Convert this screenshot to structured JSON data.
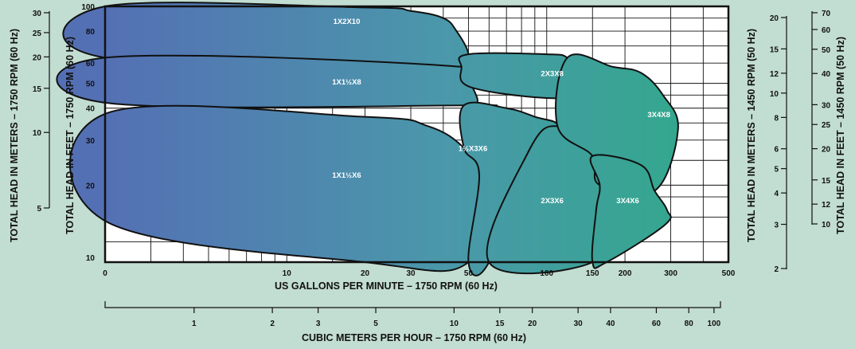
{
  "chart_data": {
    "type": "area",
    "title": "",
    "xlabel": "US GALLONS PER MINUTE – 1750 RPM (60 Hz)",
    "x2label": "CUBIC METERS PER HOUR – 1750 RPM (60 Hz)",
    "ylabel": "TOTAL HEAD IN FEET – 1750 RPM (60 Hz)",
    "ylabel_left_outer": "TOTAL HEAD IN METERS – 1750 RPM (60 Hz)",
    "ylabel_right_inner": "TOTAL HEAD IN METERS – 1450 RPM (50 Hz)",
    "ylabel_right_outer": "TOTAL HEAD IN FEET – 1450 RPM (50 Hz)",
    "x_scale": "log",
    "y_scale": "log",
    "xlim": [
      2,
      500
    ],
    "ylim": [
      10,
      100
    ],
    "grid": true,
    "color_gradient": [
      "#5470b4",
      "#4a98aa",
      "#2faa88"
    ],
    "x_ticks": [
      "0",
      "10",
      "20",
      "30",
      "50",
      "100",
      "150",
      "200",
      "300",
      "500"
    ],
    "y_ticks": [
      "10",
      "20",
      "30",
      "40",
      "50",
      "60",
      "80",
      "100"
    ],
    "x2_ticks": [
      "1",
      "2",
      "3",
      "5",
      "10",
      "15",
      "20",
      "30",
      "40",
      "60",
      "80",
      "100"
    ],
    "y_left_outer_ticks": [
      "5",
      "10",
      "15",
      "20",
      "25",
      "30"
    ],
    "y_right_inner_ticks": [
      "2",
      "3",
      "4",
      "5",
      "6",
      "8",
      "10",
      "12",
      "15",
      "20"
    ],
    "y_right_outer_ticks": [
      "10",
      "12",
      "15",
      "20",
      "25",
      "30",
      "40",
      "50",
      "60",
      "70"
    ],
    "series": [
      {
        "name": "1X2X10",
        "label_at": [
          17,
          88
        ],
        "boundary": [
          [
            2,
            100
          ],
          [
            20,
            99
          ],
          [
            30,
            96
          ],
          [
            40,
            90
          ],
          [
            45,
            80
          ],
          [
            50,
            65
          ],
          [
            47,
            58
          ],
          [
            2,
            63
          ]
        ]
      },
      {
        "name": "1X1½X8",
        "label_at": [
          17,
          51
        ],
        "boundary": [
          [
            2,
            63
          ],
          [
            47,
            58
          ],
          [
            52,
            48
          ],
          [
            54,
            42
          ],
          [
            48,
            41
          ],
          [
            2,
            42
          ]
        ]
      },
      {
        "name": "1X1½X6",
        "label_at": [
          17,
          22
        ],
        "boundary": [
          [
            2,
            38
          ],
          [
            20,
            37
          ],
          [
            35,
            34
          ],
          [
            48,
            28
          ],
          [
            55,
            22
          ],
          [
            50,
            10
          ],
          [
            20,
            10
          ],
          [
            2,
            14.5
          ]
        ]
      },
      {
        "name": "2X3X8",
        "label_at": [
          105,
          55
        ],
        "boundary": [
          [
            47,
            58
          ],
          [
            50,
            65
          ],
          [
            100,
            65
          ],
          [
            120,
            63
          ],
          [
            130,
            55
          ],
          [
            120,
            44
          ],
          [
            52,
            48
          ]
        ]
      },
      {
        "name": "1½X3X6",
        "label_at": [
          52,
          28
        ],
        "boundary": [
          [
            48,
            41
          ],
          [
            70,
            40
          ],
          [
            90,
            37
          ],
          [
            110,
            34
          ],
          [
            85,
            27
          ],
          [
            60,
            10
          ],
          [
            50,
            10
          ],
          [
            55,
            22
          ],
          [
            48,
            28
          ]
        ]
      },
      {
        "name": "2X3X6",
        "label_at": [
          105,
          17.5
        ],
        "boundary": [
          [
            110,
            34
          ],
          [
            150,
            26
          ],
          [
            160,
            20
          ],
          [
            155,
            16
          ],
          [
            150,
            10
          ],
          [
            60,
            10
          ],
          [
            85,
            27
          ]
        ]
      },
      {
        "name": "3X4X8",
        "label_at": [
          270,
          38
        ],
        "boundary": [
          [
            120,
            63
          ],
          [
            180,
            58
          ],
          [
            230,
            55
          ],
          [
            280,
            45
          ],
          [
            320,
            33
          ],
          [
            260,
            19
          ],
          [
            160,
            20
          ],
          [
            150,
            26
          ],
          [
            110,
            34
          ]
        ]
      },
      {
        "name": "3X4X6",
        "label_at": [
          205,
          17.5
        ],
        "boundary": [
          [
            150,
            26
          ],
          [
            230,
            24
          ],
          [
            260,
            19
          ],
          [
            290,
            16
          ],
          [
            285,
            14
          ],
          [
            170,
            10
          ],
          [
            150,
            10
          ],
          [
            155,
            16
          ],
          [
            160,
            20
          ]
        ]
      }
    ]
  }
}
